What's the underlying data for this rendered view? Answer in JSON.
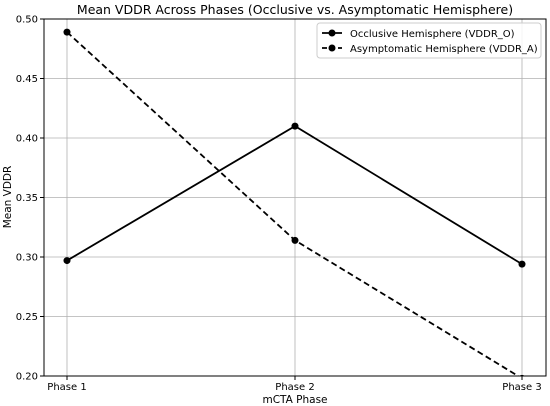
{
  "chart_data": {
    "type": "line",
    "title": "Mean VDDR Across Phases (Occlusive vs. Asymptomatic Hemisphere)",
    "xlabel": "mCTA Phase",
    "ylabel": "Mean VDDR",
    "categories": [
      "Phase 1",
      "Phase 2",
      "Phase 3"
    ],
    "ylim": [
      0.2,
      0.5
    ],
    "yticks": [
      "0.20",
      "0.25",
      "0.30",
      "0.35",
      "0.40",
      "0.45",
      "0.50"
    ],
    "grid": true,
    "legend_position": "top-right",
    "series": [
      {
        "name": "Occlusive Hemisphere (VDDR_O)",
        "values": [
          0.297,
          0.41,
          0.294
        ],
        "line_style": "solid",
        "color": "#000000"
      },
      {
        "name": "Asymptomatic Hemisphere (VDDR_A)",
        "values": [
          0.489,
          0.314,
          0.198
        ],
        "line_style": "dashed",
        "color": "#000000"
      }
    ]
  }
}
